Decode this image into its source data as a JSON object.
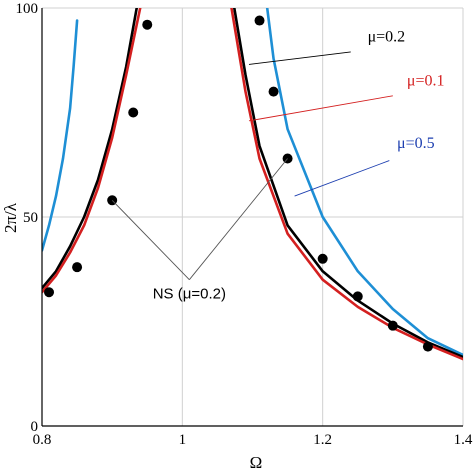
{
  "chart_data": {
    "type": "line",
    "xlabel": "Ω",
    "ylabel": "2π/λ",
    "xlim": [
      0.8,
      1.4
    ],
    "ylim": [
      0,
      100
    ],
    "grid": true,
    "x_ticks": [
      {
        "value": 0.8,
        "label": "0.8"
      },
      {
        "value": 1.0,
        "label": "1"
      },
      {
        "value": 1.2,
        "label": "1.2"
      },
      {
        "value": 1.4,
        "label": "1.4"
      }
    ],
    "y_ticks": [
      {
        "value": 0,
        "label": "0"
      },
      {
        "value": 50,
        "label": "50"
      },
      {
        "value": 100,
        "label": "100"
      }
    ],
    "series": [
      {
        "name": "μ=0.5",
        "color": "#1e8fd5",
        "segments": [
          [
            [
              0.8,
              42
            ],
            [
              0.81,
              48
            ],
            [
              0.82,
              55
            ],
            [
              0.83,
              64
            ],
            [
              0.84,
              76
            ],
            [
              0.845,
              86
            ],
            [
              0.85,
              97
            ]
          ],
          [
            [
              1.121,
              100
            ],
            [
              1.13,
              88
            ],
            [
              1.15,
              71
            ],
            [
              1.2,
              50
            ],
            [
              1.25,
              37
            ],
            [
              1.3,
              28
            ],
            [
              1.35,
              21
            ],
            [
              1.4,
              17
            ]
          ]
        ]
      },
      {
        "name": "μ=0.2",
        "color": "#000000",
        "segments": [
          [
            [
              0.8,
              33
            ],
            [
              0.82,
              37
            ],
            [
              0.84,
              43
            ],
            [
              0.86,
              50
            ],
            [
              0.88,
              59
            ],
            [
              0.9,
              71
            ],
            [
              0.92,
              86
            ],
            [
              0.935,
              100
            ]
          ],
          [
            [
              1.074,
              100
            ],
            [
              1.09,
              84
            ],
            [
              1.11,
              67
            ],
            [
              1.15,
              48
            ],
            [
              1.2,
              37
            ],
            [
              1.25,
              30
            ],
            [
              1.3,
              24.5
            ],
            [
              1.35,
              20
            ],
            [
              1.4,
              16.5
            ]
          ]
        ]
      },
      {
        "name": "μ=0.1",
        "color": "#d42020",
        "segments": [
          [
            [
              0.8,
              32
            ],
            [
              0.82,
              36
            ],
            [
              0.84,
              41.5
            ],
            [
              0.86,
              48
            ],
            [
              0.88,
              57
            ],
            [
              0.9,
              69
            ],
            [
              0.92,
              84
            ],
            [
              0.94,
              100
            ]
          ],
          [
            [
              1.07,
              100
            ],
            [
              1.09,
              80
            ],
            [
              1.11,
              64
            ],
            [
              1.15,
              46
            ],
            [
              1.2,
              35
            ],
            [
              1.25,
              28.5
            ],
            [
              1.3,
              23.5
            ],
            [
              1.35,
              19.5
            ],
            [
              1.4,
              16
            ]
          ]
        ]
      }
    ],
    "points": {
      "name": "NS (μ=0.2)",
      "x": [
        0.81,
        0.85,
        0.9,
        0.93,
        0.95,
        1.11,
        1.13,
        1.15,
        1.2,
        1.25,
        1.3,
        1.35
      ],
      "y": [
        32,
        38,
        54,
        75,
        96,
        97,
        80,
        64,
        40,
        31,
        24,
        19
      ]
    },
    "annotations": [
      {
        "text": "μ=0.2",
        "color": "#000000",
        "label_at": [
          1.264,
          92
        ],
        "line_from": [
          1.24,
          89.5
        ],
        "line_to": [
          1.095,
          86.5
        ]
      },
      {
        "text": "μ=0.1",
        "color": "#d42020",
        "label_at": [
          1.32,
          81.5
        ],
        "line_from": [
          1.3,
          79
        ],
        "line_to": [
          1.095,
          73
        ]
      },
      {
        "text": "μ=0.5",
        "color": "#1d3fb0",
        "label_at": [
          1.306,
          66.5
        ],
        "line_from": [
          1.295,
          63.5
        ],
        "line_to": [
          1.16,
          55
        ]
      }
    ],
    "ns_annotation": {
      "text": "NS (μ=0.2)",
      "label_at": [
        1.01,
        30.5
      ],
      "vertex": [
        1.01,
        35
      ],
      "targets": [
        [
          0.9,
          54
        ],
        [
          1.15,
          64
        ]
      ]
    }
  }
}
